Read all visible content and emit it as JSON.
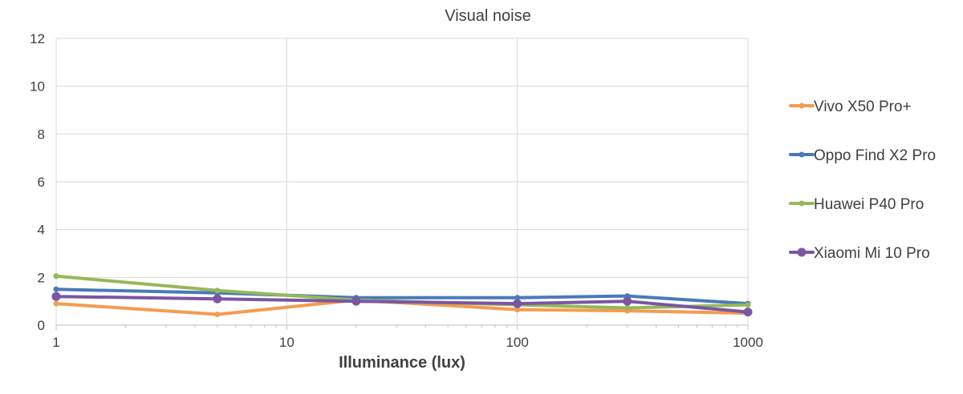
{
  "chart_data": {
    "type": "line",
    "title": "Visual noise",
    "xlabel": "Illuminance (lux)",
    "ylabel": "",
    "x_scale": "log",
    "xlim": [
      1,
      1000
    ],
    "ylim": [
      0,
      12
    ],
    "x_ticks": [
      1,
      10,
      100,
      1000
    ],
    "y_ticks": [
      0,
      2,
      4,
      6,
      8,
      10,
      12
    ],
    "grid": true,
    "legend_position": "right",
    "series": [
      {
        "name": "Vivo X50 Pro+",
        "color": "#f39c4f",
        "marker": "small",
        "x": [
          1,
          5,
          20,
          100,
          300,
          1000
        ],
        "y": [
          0.9,
          0.45,
          1.05,
          0.65,
          0.6,
          0.5
        ]
      },
      {
        "name": "Oppo Find X2 Pro",
        "color": "#4a79b8",
        "marker": "small",
        "x": [
          1,
          5,
          20,
          100,
          300,
          1000
        ],
        "y": [
          1.5,
          1.35,
          1.15,
          1.15,
          1.22,
          0.9
        ]
      },
      {
        "name": "Huawei P40 Pro",
        "color": "#95b858",
        "marker": "small",
        "x": [
          1,
          5,
          20,
          100,
          300,
          1000
        ],
        "y": [
          2.05,
          1.45,
          1.05,
          0.85,
          0.72,
          0.85
        ]
      },
      {
        "name": "Xiaomi Mi 10 Pro",
        "color": "#7a56a3",
        "marker": "large",
        "x": [
          1,
          5,
          20,
          100,
          300,
          1000
        ],
        "y": [
          1.2,
          1.1,
          1.0,
          0.9,
          1.0,
          0.55
        ]
      }
    ]
  }
}
